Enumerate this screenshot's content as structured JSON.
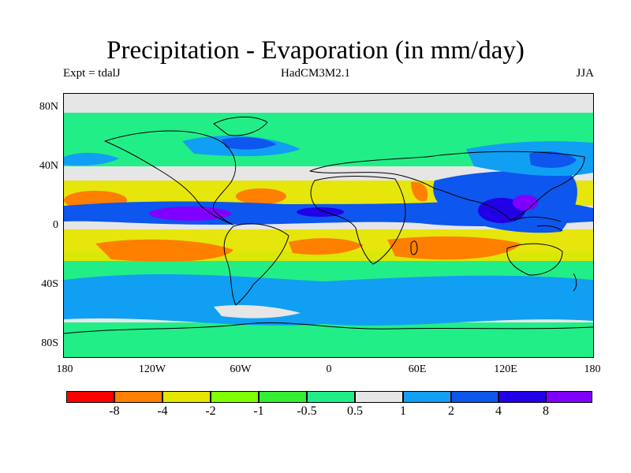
{
  "title": "Precipitation - Evaporation (in mm/day)",
  "subtitle_left": "Expt = tdalJ",
  "subtitle_center": "HadCM3M2.1",
  "subtitle_right": "JJA",
  "map": {
    "type": "heatmap",
    "projection": "equirectangular",
    "lat_range": [
      -90,
      90
    ],
    "lon_range": [
      -180,
      180
    ],
    "lat_tick_labels": [
      "80N",
      "40N",
      "0",
      "40S",
      "80S"
    ],
    "lon_tick_labels": [
      "180",
      "120W",
      "60W",
      "0",
      "60E",
      "120E",
      "180"
    ],
    "background_level": "0.5 to 1",
    "coastlines": true
  },
  "colorbar": {
    "labels": [
      "-8",
      "-4",
      "-2",
      "-1",
      "-0.5",
      "0.5",
      "1",
      "2",
      "4",
      "8"
    ],
    "colors": [
      "#ff0000",
      "#ff7f00",
      "#e6e600",
      "#80ff00",
      "#33ee33",
      "#22ee88",
      "#e6e6e6",
      "#119ff3",
      "#0d56ee",
      "#2200e6",
      "#7f00ff"
    ]
  },
  "colors": {
    "background": "#e6e6e6",
    "coastline": "#000000"
  }
}
